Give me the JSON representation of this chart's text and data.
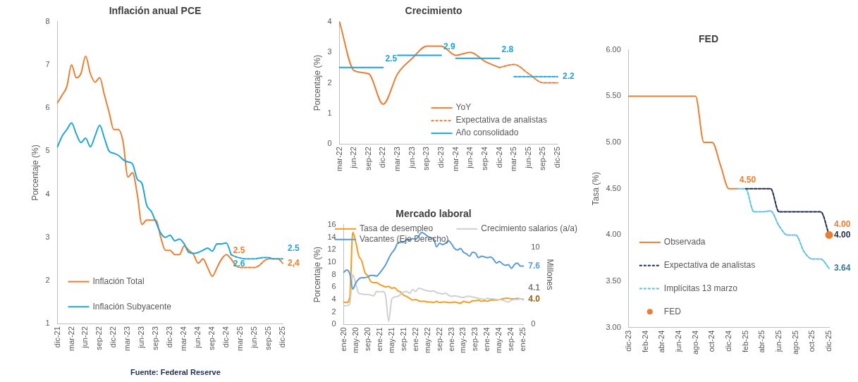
{
  "chart_data": [
    {
      "type": "line",
      "title": "Inflación anual PCE",
      "ylabel": "Porcentaje (%)",
      "ylim": [
        1,
        8
      ],
      "yticks": [
        1,
        2,
        3,
        4,
        5,
        6,
        7,
        8
      ],
      "legend": "bottom left",
      "annotations": [
        "Fuente: Federal Reserve"
      ],
      "categories": [
        "dic-21",
        null,
        null,
        "mar-22",
        null,
        null,
        "jun-22",
        null,
        null,
        "sep-22",
        null,
        null,
        "dic-22",
        null,
        null,
        "mar-23",
        null,
        null,
        "jun-23",
        null,
        null,
        "sep-23",
        null,
        null,
        "dic-23",
        null,
        null,
        "mar-24",
        null,
        null,
        "jun-24",
        null,
        null,
        "sep-24",
        null,
        null,
        "dic-24",
        null,
        null,
        "mar-25",
        null,
        null,
        "jun-25",
        null,
        null,
        "sep-25",
        null,
        null,
        "dic-25"
      ],
      "series": [
        {
          "name": "Inflación Total",
          "color": "#ed7d31",
          "values": [
            6.12,
            6.3,
            6.5,
            7.0,
            6.7,
            6.8,
            7.2,
            6.8,
            6.6,
            6.7,
            6.3,
            5.9,
            5.5,
            5.5,
            5.2,
            4.4,
            4.5,
            4.0,
            3.3,
            3.4,
            3.4,
            3.4,
            3.0,
            2.7,
            2.7,
            2.6,
            2.6,
            2.8,
            2.7,
            2.6,
            2.4,
            2.5,
            2.3,
            2.1,
            2.3,
            2.5,
            2.6,
            2.5,
            null,
            null,
            null,
            null,
            null,
            null,
            null,
            null,
            null,
            null,
            null
          ],
          "value_labels": [
            null,
            null,
            null,
            null,
            null,
            null,
            null,
            null,
            null,
            null,
            null,
            null,
            null,
            null,
            null,
            null,
            null,
            null,
            null,
            null,
            null,
            null,
            null,
            null,
            null,
            null,
            null,
            null,
            null,
            null,
            null,
            null,
            null,
            null,
            null,
            null,
            null,
            "2.5",
            null,
            null,
            null,
            null,
            null,
            null,
            null,
            null,
            null,
            null,
            null
          ]
        },
        {
          "name": "Inflación Subyacente",
          "color": "#1ea6dc",
          "values": [
            5.1,
            5.35,
            5.5,
            5.65,
            5.4,
            5.2,
            5.3,
            5.1,
            5.35,
            5.6,
            5.3,
            5.0,
            4.95,
            4.9,
            4.8,
            4.75,
            4.7,
            4.35,
            4.25,
            3.75,
            3.6,
            3.35,
            3.1,
            3.0,
            3.05,
            2.92,
            2.96,
            2.85,
            2.65,
            2.63,
            2.65,
            2.7,
            2.75,
            2.68,
            2.85,
            2.85,
            2.87,
            2.6,
            null,
            null,
            null,
            null,
            null,
            null,
            null,
            null,
            null,
            null,
            null
          ],
          "value_labels": [
            null,
            null,
            null,
            null,
            null,
            null,
            null,
            null,
            null,
            null,
            null,
            null,
            null,
            null,
            null,
            null,
            null,
            null,
            null,
            null,
            null,
            null,
            null,
            null,
            null,
            null,
            null,
            null,
            null,
            null,
            null,
            null,
            null,
            null,
            null,
            null,
            null,
            "2.6",
            null,
            null,
            null,
            null,
            null,
            null,
            null,
            null,
            null,
            null,
            null
          ]
        },
        {
          "color": "#ed7d31",
          "line_style": "dashed",
          "values": [
            null,
            null,
            null,
            null,
            null,
            null,
            null,
            null,
            null,
            null,
            null,
            null,
            null,
            null,
            null,
            null,
            null,
            null,
            null,
            null,
            null,
            null,
            null,
            null,
            null,
            null,
            null,
            null,
            null,
            null,
            null,
            null,
            null,
            null,
            null,
            null,
            null,
            2.5,
            2.35,
            2.3,
            2.3,
            2.3,
            2.3,
            2.35,
            2.45,
            2.5,
            2.5,
            2.5,
            2.4
          ],
          "value_labels": [
            null,
            null,
            null,
            null,
            null,
            null,
            null,
            null,
            null,
            null,
            null,
            null,
            null,
            null,
            null,
            null,
            null,
            null,
            null,
            null,
            null,
            null,
            null,
            null,
            null,
            null,
            null,
            null,
            null,
            null,
            null,
            null,
            null,
            null,
            null,
            null,
            null,
            null,
            null,
            null,
            null,
            null,
            null,
            null,
            null,
            null,
            null,
            null,
            "2,4"
          ]
        },
        {
          "color": "#1ea6dc",
          "line_style": "dashed",
          "values": [
            null,
            null,
            null,
            null,
            null,
            null,
            null,
            null,
            null,
            null,
            null,
            null,
            null,
            null,
            null,
            null,
            null,
            null,
            null,
            null,
            null,
            null,
            null,
            null,
            null,
            null,
            null,
            null,
            null,
            null,
            null,
            null,
            null,
            null,
            null,
            null,
            null,
            2.6,
            2.55,
            2.52,
            2.5,
            2.5,
            2.5,
            2.52,
            2.53,
            2.53,
            2.5,
            2.5,
            2.5
          ],
          "value_labels": [
            null,
            null,
            null,
            null,
            null,
            null,
            null,
            null,
            null,
            null,
            null,
            null,
            null,
            null,
            null,
            null,
            null,
            null,
            null,
            null,
            null,
            null,
            null,
            null,
            null,
            null,
            null,
            null,
            null,
            null,
            null,
            null,
            null,
            null,
            null,
            null,
            null,
            null,
            null,
            null,
            null,
            null,
            null,
            null,
            null,
            null,
            null,
            null,
            "2.5"
          ]
        }
      ]
    },
    {
      "type": "line",
      "title": "Crecimiento",
      "ylabel": "Porcentaje (%)",
      "ylim": [
        0,
        4
      ],
      "yticks": [
        0,
        1,
        2,
        3,
        4
      ],
      "legend": "bottom right",
      "categories": [
        "mar-22",
        "jun-22",
        "sep-22",
        "dic-22",
        "mar-23",
        "jun-23",
        "sep-23",
        "dic-23",
        "mar-24",
        "jun-24",
        "sep-24",
        "dic-24",
        "mar-25",
        "jun-25",
        "sep-25",
        "dic-25"
      ],
      "series": [
        {
          "name": "YoY",
          "color": "#ed7d31",
          "values": [
            4.0,
            2.4,
            2.3,
            1.3,
            2.3,
            2.8,
            3.2,
            3.2,
            2.9,
            3.0,
            2.7,
            2.5,
            null,
            null,
            null,
            null
          ]
        },
        {
          "name": "Expectativa de analistas",
          "color": "#ed7d31",
          "line_style": "dashed",
          "values": [
            null,
            null,
            null,
            null,
            null,
            null,
            null,
            null,
            null,
            null,
            null,
            2.5,
            2.6,
            2.3,
            2.0,
            2.0
          ]
        },
        {
          "name": "Año consolidado",
          "color": "#1ea3d8",
          "values": [
            2.5,
            2.5,
            2.5,
            2.5,
            null,
            null,
            null,
            null,
            null,
            null,
            null,
            null,
            null,
            null,
            null,
            null
          ],
          "value_labels": [
            null,
            null,
            null,
            "2.5",
            null,
            null,
            null,
            null,
            null,
            null,
            null,
            null,
            null,
            null,
            null,
            null
          ]
        },
        {
          "color": "#1ea3d8",
          "values": [
            null,
            null,
            null,
            null,
            2.9,
            2.9,
            2.9,
            2.9,
            null,
            null,
            null,
            null,
            null,
            null,
            null,
            null
          ],
          "value_labels": [
            null,
            null,
            null,
            null,
            null,
            null,
            null,
            "2.9",
            null,
            null,
            null,
            null,
            null,
            null,
            null,
            null
          ]
        },
        {
          "color": "#1ea3d8",
          "values": [
            null,
            null,
            null,
            null,
            null,
            null,
            null,
            null,
            2.8,
            2.8,
            2.8,
            2.8,
            null,
            null,
            null,
            null
          ],
          "value_labels": [
            null,
            null,
            null,
            null,
            null,
            null,
            null,
            null,
            null,
            null,
            null,
            "2.8",
            null,
            null,
            null,
            null
          ]
        },
        {
          "color": "#1ea3d8",
          "line_style": "dashed",
          "values": [
            null,
            null,
            null,
            null,
            null,
            null,
            null,
            null,
            null,
            null,
            null,
            null,
            2.2,
            2.2,
            2.2,
            2.2
          ],
          "value_labels": [
            null,
            null,
            null,
            null,
            null,
            null,
            null,
            null,
            null,
            null,
            null,
            null,
            null,
            null,
            null,
            "2.2"
          ]
        }
      ]
    },
    {
      "type": "line",
      "title": "Mercado laboral",
      "ylabel": "Porcentaje (%)",
      "y2label": "Millones",
      "ylim": [
        0,
        16
      ],
      "yticks": [
        0,
        2,
        4,
        6,
        8,
        10,
        12,
        14,
        16
      ],
      "y2lim": [
        0,
        13
      ],
      "y2ticks": [
        0,
        10
      ],
      "legend": "top",
      "categories": [
        "ene-20",
        null,
        null,
        null,
        "may-20",
        null,
        null,
        null,
        "sep-20",
        null,
        null,
        null,
        "ene-21",
        null,
        null,
        null,
        "may-21",
        null,
        null,
        null,
        "sep-21",
        null,
        null,
        null,
        "ene-22",
        null,
        null,
        null,
        "may-22",
        null,
        null,
        null,
        "sep-22",
        null,
        null,
        null,
        "ene-23",
        null,
        null,
        null,
        "may-23",
        null,
        null,
        null,
        "sep-23",
        null,
        null,
        null,
        "ene-24",
        null,
        null,
        null,
        "may-24",
        null,
        null,
        null,
        "sep-24",
        null,
        null,
        null,
        "ene-25"
      ],
      "series": [
        {
          "name": "Tasa de desempleo",
          "color": "#f59b1c",
          "values": [
            3.6,
            3.5,
            4.4,
            14.8,
            13.2,
            11.0,
            10.2,
            8.4,
            7.8,
            6.9,
            6.7,
            6.7,
            6.4,
            6.2,
            6.0,
            6.1,
            5.8,
            5.9,
            5.4,
            5.2,
            4.7,
            4.5,
            4.2,
            3.9,
            4.0,
            3.8,
            3.7,
            3.7,
            3.6,
            3.6,
            3.5,
            3.7,
            3.5,
            3.6,
            3.6,
            3.5,
            3.5,
            3.6,
            3.5,
            3.4,
            3.7,
            3.6,
            3.5,
            3.8,
            3.8,
            3.9,
            3.7,
            3.8,
            3.7,
            3.9,
            3.9,
            3.9,
            4.0,
            4.1,
            4.2,
            4.2,
            4.1,
            4.1,
            4.2,
            4.1,
            4.0
          ],
          "value_labels": [
            null,
            null,
            null,
            null,
            null,
            null,
            null,
            null,
            null,
            null,
            null,
            null,
            null,
            null,
            null,
            null,
            null,
            null,
            null,
            null,
            null,
            null,
            null,
            null,
            null,
            null,
            null,
            null,
            null,
            null,
            null,
            null,
            null,
            null,
            null,
            null,
            null,
            null,
            null,
            null,
            null,
            null,
            null,
            null,
            null,
            null,
            null,
            null,
            null,
            null,
            null,
            null,
            null,
            null,
            null,
            null,
            null,
            null,
            null,
            null,
            "4.0"
          ]
        },
        {
          "name": "Crecimiento salarios (a/a)",
          "color": "#d0d0d0",
          "values": [
            3.0,
            3.0,
            3.3,
            8.0,
            6.5,
            5.0,
            4.9,
            4.8,
            4.8,
            4.7,
            4.6,
            5.3,
            5.2,
            5.3,
            4.5,
            0.5,
            4.0,
            4.4,
            4.5,
            4.8,
            5.2,
            5.3,
            5.0,
            5.6,
            5.3,
            5.8,
            5.7,
            5.5,
            5.4,
            5.3,
            5.4,
            5.1,
            5.0,
            4.9,
            5.0,
            4.7,
            4.5,
            4.6,
            4.5,
            4.4,
            4.3,
            4.5,
            4.5,
            4.4,
            4.3,
            4.2,
            4.1,
            4.0,
            4.2,
            4.1,
            4.1,
            4.0,
            4.0,
            3.9,
            3.7,
            3.6,
            3.9,
            4.0,
            4.0,
            4.1,
            4.1
          ],
          "value_labels": [
            null,
            null,
            null,
            null,
            null,
            null,
            null,
            null,
            null,
            null,
            null,
            null,
            null,
            null,
            null,
            null,
            null,
            null,
            null,
            null,
            null,
            null,
            null,
            null,
            null,
            null,
            null,
            null,
            null,
            null,
            null,
            null,
            null,
            null,
            null,
            null,
            null,
            null,
            null,
            null,
            null,
            null,
            null,
            null,
            null,
            null,
            null,
            null,
            null,
            null,
            null,
            null,
            null,
            null,
            null,
            null,
            null,
            null,
            null,
            null,
            "4.1"
          ]
        },
        {
          "name": "Vacantes (Eje Derecho)",
          "color": "#5b9bd5",
          "axis": "y2",
          "values": [
            6.8,
            7.1,
            6.6,
            4.6,
            5.4,
            5.9,
            6.1,
            6.1,
            6.2,
            6.4,
            6.4,
            6.3,
            6.7,
            7.2,
            7.8,
            8.6,
            9.3,
            9.8,
            10.6,
            10.7,
            10.7,
            11.1,
            10.9,
            11.2,
            11.1,
            11.5,
            12.0,
            11.8,
            11.5,
            11.3,
            11.2,
            10.1,
            10.6,
            10.4,
            10.6,
            10.9,
            10.5,
            9.9,
            9.7,
            9.9,
            9.4,
            9.2,
            8.9,
            9.4,
            9.3,
            8.7,
            8.9,
            8.8,
            8.7,
            8.8,
            8.5,
            8.0,
            8.2,
            7.9,
            7.7,
            7.8,
            7.3,
            7.8,
            8.0,
            7.6,
            7.6
          ],
          "value_labels": [
            null,
            null,
            null,
            null,
            null,
            null,
            null,
            null,
            null,
            null,
            null,
            null,
            null,
            null,
            null,
            null,
            null,
            null,
            null,
            null,
            null,
            null,
            null,
            null,
            null,
            null,
            null,
            null,
            null,
            null,
            null,
            null,
            null,
            null,
            null,
            null,
            null,
            null,
            null,
            null,
            null,
            null,
            null,
            null,
            null,
            null,
            null,
            null,
            null,
            null,
            null,
            null,
            null,
            null,
            null,
            null,
            null,
            null,
            null,
            null,
            "7.6"
          ]
        }
      ]
    },
    {
      "type": "line",
      "title": "FED",
      "ylabel": "Tasa (%)",
      "ylim": [
        3,
        6
      ],
      "yticks": [
        {
          "value": 3,
          "label": "3.00"
        },
        {
          "value": 3.5,
          "label": "3.50"
        },
        {
          "value": 4,
          "label": "4.00"
        },
        {
          "value": 4.5,
          "label": "4.50"
        },
        {
          "value": 5,
          "label": "5.00"
        },
        {
          "value": 5.5,
          "label": "5.50"
        },
        {
          "value": 6,
          "label": "6.00"
        }
      ],
      "legend": "bottom left",
      "categories": [
        "dic-23",
        null,
        "feb-24",
        null,
        "abr-24",
        null,
        "jun-24",
        null,
        "ago-24",
        null,
        "oct-24",
        null,
        "dic-24",
        null,
        "feb-25",
        null,
        "abr-25",
        null,
        "jun-25",
        null,
        "ago-25",
        null,
        "oct-25",
        null,
        "dic-25"
      ],
      "series": [
        {
          "name": "Observada",
          "color": "#ed7d31",
          "values": [
            5.5,
            5.5,
            5.5,
            5.5,
            5.5,
            5.5,
            5.5,
            5.5,
            5.5,
            5.0,
            5.0,
            4.75,
            4.5,
            4.5,
            null,
            null,
            null,
            null,
            null,
            null,
            null,
            null,
            null,
            null,
            null
          ],
          "value_labels": [
            null,
            null,
            null,
            null,
            null,
            null,
            null,
            null,
            null,
            null,
            null,
            null,
            null,
            "4.50",
            null,
            null,
            null,
            null,
            null,
            null,
            null,
            null,
            null,
            null,
            null
          ]
        },
        {
          "name": "Expectativa de analistas",
          "color": "#1f2d4d",
          "line_style": "dashed",
          "values": [
            null,
            null,
            null,
            null,
            null,
            null,
            null,
            null,
            null,
            null,
            null,
            null,
            null,
            null,
            4.5,
            4.5,
            4.5,
            4.5,
            4.25,
            4.25,
            4.25,
            4.25,
            4.25,
            4.25,
            4.0
          ],
          "value_labels": [
            null,
            null,
            null,
            null,
            null,
            null,
            null,
            null,
            null,
            null,
            null,
            null,
            null,
            null,
            null,
            null,
            null,
            null,
            null,
            null,
            null,
            null,
            null,
            null,
            "4.00"
          ]
        },
        {
          "name": "Implícitas 13 marzo",
          "color": "#5bc0eb",
          "line_style": "dashed",
          "values": [
            null,
            null,
            null,
            null,
            null,
            null,
            null,
            null,
            null,
            null,
            null,
            null,
            null,
            4.5,
            4.5,
            4.25,
            4.25,
            4.26,
            4.1,
            4.0,
            4.0,
            3.82,
            3.74,
            3.74,
            3.64
          ],
          "value_labels": [
            null,
            null,
            null,
            null,
            null,
            null,
            null,
            null,
            null,
            null,
            null,
            null,
            null,
            null,
            null,
            null,
            null,
            null,
            null,
            null,
            null,
            null,
            null,
            null,
            "3.64"
          ]
        },
        {
          "name": "FED",
          "type": "scatter",
          "marker": "circle",
          "color": "#ed7d31",
          "values": [
            null,
            null,
            null,
            null,
            null,
            null,
            null,
            null,
            null,
            null,
            null,
            null,
            null,
            null,
            null,
            null,
            null,
            null,
            null,
            null,
            null,
            null,
            null,
            null,
            4.0
          ],
          "value_labels": [
            null,
            null,
            null,
            null,
            null,
            null,
            null,
            null,
            null,
            null,
            null,
            null,
            null,
            null,
            null,
            null,
            null,
            null,
            null,
            null,
            null,
            null,
            null,
            null,
            "4.00"
          ]
        }
      ]
    }
  ]
}
